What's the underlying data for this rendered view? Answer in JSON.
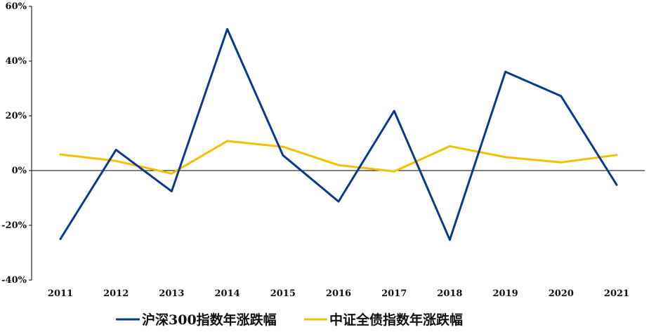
{
  "chart_data": {
    "type": "line",
    "title": "",
    "xlabel": "",
    "ylabel": "",
    "categories": [
      "2011",
      "2012",
      "2013",
      "2014",
      "2015",
      "2016",
      "2017",
      "2018",
      "2019",
      "2020",
      "2021"
    ],
    "ylim": [
      -40,
      60
    ],
    "yticks": [
      -40,
      -20,
      0,
      20,
      40,
      60
    ],
    "ytick_labels": [
      "-40%",
      "-20%",
      "0%",
      "20%",
      "40%",
      "60%"
    ],
    "grid": false,
    "legend_position": "bottom",
    "series": [
      {
        "name": "沪深300指数年涨跌幅",
        "color": "#0b3a8c",
        "values": [
          -25.0,
          7.6,
          -7.6,
          51.7,
          5.6,
          -11.3,
          21.8,
          -25.3,
          36.1,
          27.2,
          -5.2
        ]
      },
      {
        "name": "中证全债指数年涨跌幅",
        "color": "#f6c000",
        "values": [
          5.9,
          3.5,
          -1.1,
          10.8,
          8.7,
          2.0,
          -0.3,
          8.9,
          4.9,
          3.0,
          5.7
        ]
      }
    ]
  }
}
